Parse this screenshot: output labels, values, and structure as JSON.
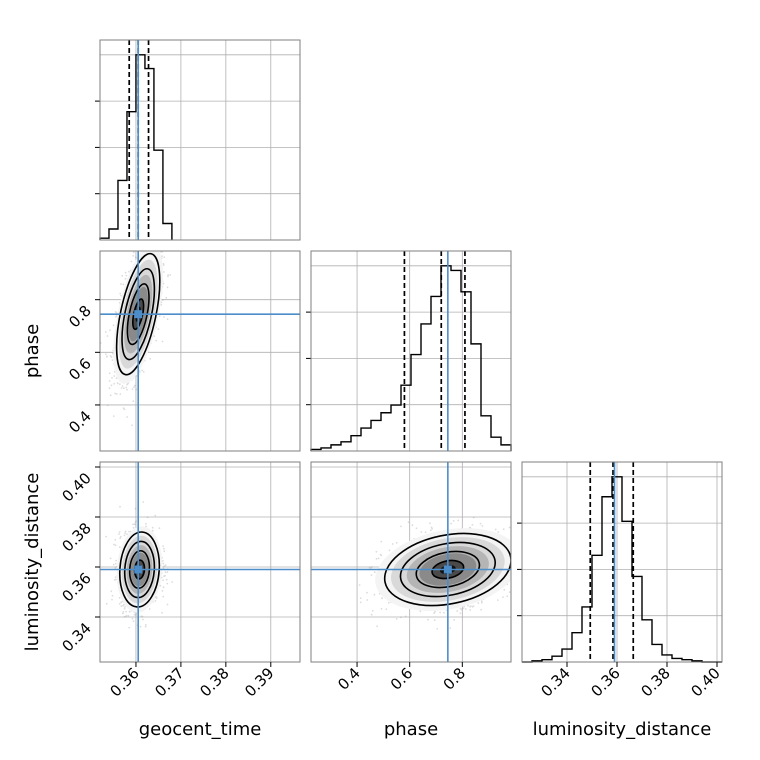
{
  "chart_data": {
    "type": "corner",
    "parameters": [
      "geocent_time",
      "phase",
      "luminosity_distance"
    ],
    "truths": {
      "geocent_time": 0.3605,
      "phase": 0.745,
      "luminosity_distance": 0.359
    },
    "truth_color": "#4c8dc9",
    "axis_ranges": {
      "geocent_time": [
        0.352,
        0.3965
      ],
      "phase": [
        0.225,
        0.985
      ],
      "luminosity_distance": [
        0.322,
        0.402
      ]
    },
    "ticks": {
      "geocent_time": {
        "values": [
          0.36,
          0.37,
          0.38,
          0.39
        ],
        "labels": [
          "0.36",
          "0.37",
          "0.38",
          "0.39"
        ]
      },
      "phase": {
        "values": [
          0.4,
          0.6,
          0.8
        ],
        "labels": [
          "0.4",
          "0.6",
          "0.8"
        ]
      },
      "luminosity_distance": {
        "values": [
          0.34,
          0.36,
          0.38,
          0.4
        ],
        "labels": [
          "0.34",
          "0.36",
          "0.38",
          "0.40"
        ]
      }
    },
    "quantiles": {
      "geocent_time": [
        0.3585,
        0.3605,
        0.3628
      ],
      "phase": [
        0.58,
        0.72,
        0.81
      ],
      "luminosity_distance": [
        0.3493,
        0.3584,
        0.3665
      ]
    },
    "histograms": {
      "geocent_time": {
        "edges": [
          0.352,
          0.354,
          0.356,
          0.358,
          0.36,
          0.362,
          0.364,
          0.366,
          0.368
        ],
        "counts": [
          2,
          12,
          65,
          140,
          202,
          187,
          98,
          18
        ]
      },
      "phase": {
        "edges": [
          0.225,
          0.263,
          0.301,
          0.339,
          0.377,
          0.415,
          0.453,
          0.491,
          0.529,
          0.567,
          0.605,
          0.643,
          0.681,
          0.719,
          0.757,
          0.795,
          0.833,
          0.871,
          0.909,
          0.947,
          0.985
        ],
        "counts": [
          1,
          2,
          4,
          6,
          10,
          15,
          20,
          25,
          30,
          43,
          63,
          83,
          101,
          121,
          118,
          104,
          70,
          23,
          9,
          4
        ]
      },
      "luminosity_distance": {
        "edges": [
          0.322,
          0.326,
          0.33,
          0.334,
          0.338,
          0.342,
          0.346,
          0.35,
          0.354,
          0.358,
          0.362,
          0.366,
          0.37,
          0.374,
          0.378,
          0.382,
          0.386,
          0.39,
          0.394,
          0.398,
          0.402
        ],
        "counts": [
          0,
          1,
          2,
          5,
          11,
          25,
          47,
          91,
          141,
          158,
          120,
          73,
          36,
          15,
          6,
          3,
          2,
          1,
          0,
          0
        ]
      }
    },
    "joint": [
      {
        "x": "geocent_time",
        "y": "phase",
        "center": [
          0.3605,
          0.745
        ],
        "sd": [
          0.0024,
          0.115
        ],
        "corr": 0.55
      },
      {
        "x": "geocent_time",
        "y": "luminosity_distance",
        "center": [
          0.3608,
          0.359
        ],
        "sd": [
          0.0022,
          0.0075
        ],
        "corr": 0.1
      },
      {
        "x": "phase",
        "y": "luminosity_distance",
        "center": [
          0.745,
          0.359
        ],
        "sd": [
          0.12,
          0.0072
        ],
        "corr": 0.25
      }
    ]
  }
}
